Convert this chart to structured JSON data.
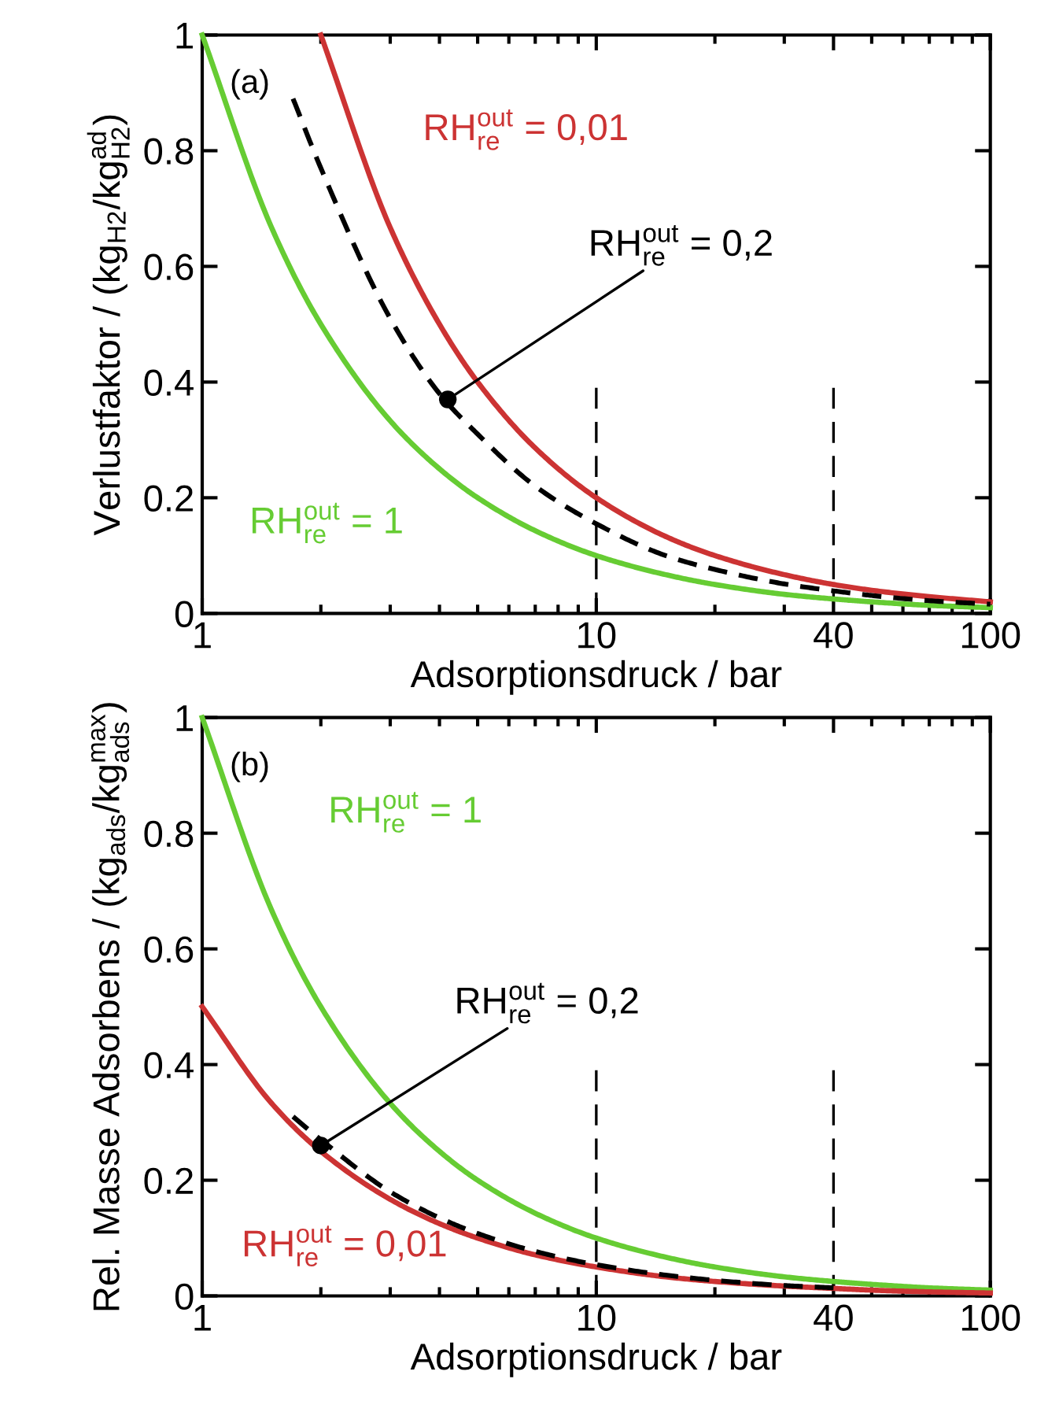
{
  "chart_data": [
    {
      "type": "line",
      "annotations": [
        "(a)"
      ],
      "xlabel": "Adsorptionsdruck / bar",
      "ylabel": "Verlustfaktor / (kg$_{H2}$/kg$^{ad}$$_{H2}$)",
      "log": "x",
      "xlim": [
        1,
        100
      ],
      "xticks": [
        1,
        10,
        40,
        100
      ],
      "ylim": [
        0,
        1
      ],
      "yticks": [
        0,
        0.2,
        0.4,
        0.6,
        0.8,
        1
      ],
      "grid": false,
      "legend": false,
      "ref_lines": [
        {
          "axis": "x",
          "value": 10,
          "line_style": "dashed",
          "color": "#000000"
        },
        {
          "axis": "x",
          "value": 40,
          "line_style": "dashed",
          "color": "#000000"
        }
      ],
      "series": [
        {
          "name": "RH$^{out}$$_{re}$ = 1",
          "color": "#66cc33",
          "line_style": "solid",
          "x": [
            1,
            1.5,
            2,
            3,
            4,
            5,
            7,
            10,
            15,
            20,
            30,
            40,
            50,
            70,
            100
          ],
          "values": [
            1,
            0.667,
            0.5,
            0.333,
            0.25,
            0.2,
            0.143,
            0.1,
            0.067,
            0.05,
            0.033,
            0.025,
            0.02,
            0.014,
            0.01
          ]
        },
        {
          "name": "RH$^{out}$$_{re}$ = 0,01",
          "color": "#cc3333",
          "line_style": "solid",
          "x": [
            2,
            3,
            4,
            5,
            7,
            10,
            15,
            20,
            30,
            40,
            50,
            70,
            100
          ],
          "values": [
            1,
            0.667,
            0.5,
            0.4,
            0.286,
            0.2,
            0.133,
            0.1,
            0.067,
            0.05,
            0.04,
            0.029,
            0.02
          ]
        },
        {
          "name": "RH$^{out}$$_{re}$ = 0,2",
          "color": "#000000",
          "line_style": "dashed",
          "x": [
            1.7,
            2,
            3,
            4,
            5,
            7,
            10,
            15,
            20,
            30,
            40,
            50,
            70,
            100
          ],
          "values": [
            0.89,
            0.77,
            0.51,
            0.38,
            0.31,
            0.22,
            0.155,
            0.1,
            0.076,
            0.051,
            0.039,
            0.031,
            0.022,
            0.016
          ]
        },
        {
          "type": "scatter",
          "color": "#000000",
          "marker": "circle",
          "x": [
            4.2
          ],
          "values": [
            0.37
          ]
        }
      ]
    },
    {
      "type": "line",
      "annotations": [
        "(b)"
      ],
      "xlabel": "Adsorptionsdruck / bar",
      "ylabel": "Rel. Masse Adsorbens / (kg$_{ads}$/kg$^{max}$$_{ads}$)",
      "log": "x",
      "xlim": [
        1,
        100
      ],
      "xticks": [
        1,
        10,
        40,
        100
      ],
      "ylim": [
        0,
        1
      ],
      "yticks": [
        0,
        0.2,
        0.4,
        0.6,
        0.8,
        1
      ],
      "grid": false,
      "legend": false,
      "ref_lines": [
        {
          "axis": "x",
          "value": 10,
          "line_style": "dashed",
          "color": "#000000"
        },
        {
          "axis": "x",
          "value": 40,
          "line_style": "dashed",
          "color": "#000000"
        }
      ],
      "series": [
        {
          "name": "RH$^{out}$$_{re}$ = 1",
          "color": "#66cc33",
          "line_style": "solid",
          "x": [
            1,
            1.5,
            2,
            3,
            4,
            5,
            7,
            10,
            15,
            20,
            30,
            40,
            50,
            70,
            100
          ],
          "values": [
            1,
            0.667,
            0.5,
            0.333,
            0.25,
            0.2,
            0.143,
            0.1,
            0.067,
            0.05,
            0.033,
            0.025,
            0.02,
            0.014,
            0.01
          ]
        },
        {
          "name": "RH$^{out}$$_{re}$ = 0,01",
          "color": "#cc3333",
          "line_style": "solid",
          "x": [
            1,
            1.5,
            2,
            3,
            4,
            5,
            7,
            10,
            15,
            20,
            30,
            40,
            50,
            70,
            100
          ],
          "values": [
            0.5,
            0.333,
            0.25,
            0.167,
            0.125,
            0.1,
            0.071,
            0.05,
            0.033,
            0.025,
            0.017,
            0.013,
            0.01,
            0.007,
            0.005
          ]
        },
        {
          "name": "RH$^{out}$$_{re}$ = 0,2",
          "color": "#000000",
          "line_style": "dashed",
          "x": [
            1.7,
            2,
            3,
            4,
            5,
            7,
            10,
            15,
            20,
            30,
            40
          ],
          "values": [
            0.31,
            0.27,
            0.18,
            0.135,
            0.108,
            0.077,
            0.054,
            0.036,
            0.027,
            0.018,
            0.014
          ]
        },
        {
          "type": "scatter",
          "color": "#000000",
          "marker": "circle",
          "x": [
            2
          ],
          "values": [
            0.26
          ]
        }
      ]
    }
  ]
}
